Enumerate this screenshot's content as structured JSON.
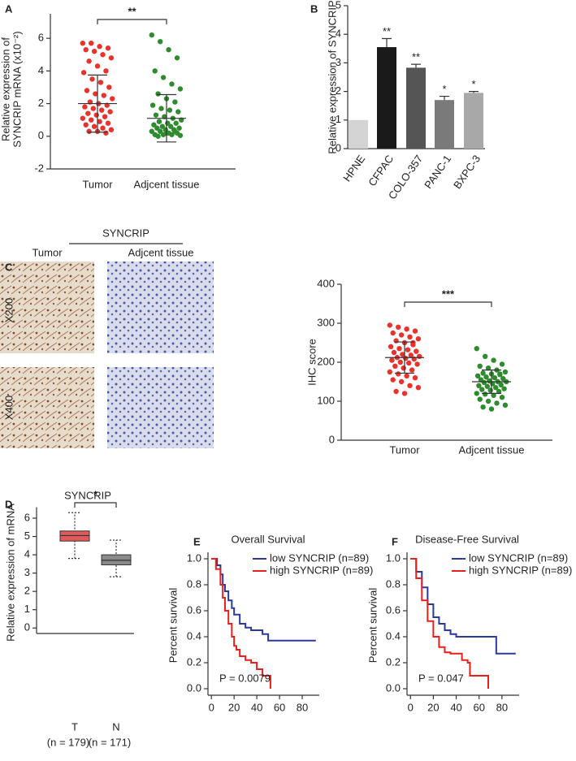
{
  "images": {
    "header": "SYNCRIP",
    "columns": [
      "Tumor",
      "Adjcent tissue"
    ],
    "rows": [
      "X200",
      "X400"
    ]
  },
  "chart_data": [
    {
      "type": "strip",
      "panel_label": "A",
      "ylabel": [
        "Relative expression of",
        "SYNCRIP mRNA (x10⁻²)"
      ],
      "categories": [
        "Tumor",
        "Adjcent tissue"
      ],
      "colors": [
        "#e8322b",
        "#2e8b2e"
      ],
      "values": [
        [
          5.7,
          5.7,
          5.5,
          5.4,
          5.3,
          5.2,
          5.0,
          4.8,
          4.6,
          4.3,
          4.0,
          3.9,
          3.5,
          3.3,
          3.0,
          2.8,
          2.6,
          2.5,
          2.3,
          2.1,
          2.0,
          1.9,
          1.8,
          1.7,
          1.6,
          1.5,
          1.4,
          1.3,
          1.2,
          1.1,
          1.0,
          0.9,
          0.8,
          0.7,
          0.6,
          0.5,
          0.4,
          0.3,
          0.3,
          0.2
        ],
        [
          6.2,
          5.8,
          5.3,
          4.8,
          4.0,
          3.6,
          3.2,
          2.9,
          2.6,
          2.3,
          2.1,
          1.9,
          1.7,
          1.6,
          1.5,
          1.3,
          1.2,
          1.1,
          1.0,
          0.9,
          0.8,
          0.8,
          0.7,
          0.6,
          0.6,
          0.5,
          0.5,
          0.4,
          0.4,
          0.3,
          0.3,
          0.2,
          0.2,
          0.1,
          0.1,
          0.1,
          0.05,
          0.0,
          0.2,
          0.3
        ]
      ],
      "mean": [
        2.0,
        1.1
      ],
      "sd": [
        1.75,
        1.45
      ],
      "significance": "**",
      "ylim": [
        -2,
        7.5
      ],
      "yticks": [
        -2,
        0,
        2,
        4,
        6
      ]
    },
    {
      "type": "bar",
      "panel_label": "B",
      "ylabel": "Relative expression of SYNCRIP",
      "categories": [
        "HPNE",
        "CFPAC",
        "COLO-357",
        "PANC-1",
        "BXPC-3"
      ],
      "values": [
        1.0,
        3.55,
        2.83,
        1.7,
        1.95
      ],
      "errors": [
        0,
        0.3,
        0.12,
        0.13,
        0.05
      ],
      "value_labels": [
        null,
        "**",
        "**",
        "*",
        "*"
      ],
      "colors": [
        "#d4d4d4",
        "#1a1a1a",
        "#555555",
        "#7a7a7a",
        "#a8a8a8"
      ],
      "ylim": [
        0,
        5
      ],
      "yticks": [
        0,
        1,
        2,
        3,
        4,
        5
      ]
    },
    {
      "type": "strip",
      "panel_label": "C",
      "ylabel": "IHC score",
      "categories": [
        "Tumor",
        "Adjcent tissue"
      ],
      "colors": [
        "#e8322b",
        "#2e8b2e"
      ],
      "values": [
        [
          295,
          290,
          285,
          280,
          275,
          270,
          265,
          260,
          255,
          250,
          245,
          240,
          235,
          232,
          228,
          225,
          220,
          218,
          215,
          212,
          210,
          208,
          205,
          200,
          198,
          195,
          190,
          185,
          180,
          175,
          170,
          165,
          160,
          155,
          150,
          140,
          135,
          125,
          120,
          250
        ],
        [
          235,
          215,
          205,
          195,
          190,
          185,
          180,
          175,
          172,
          170,
          168,
          165,
          162,
          160,
          158,
          155,
          152,
          150,
          150,
          148,
          145,
          142,
          140,
          138,
          135,
          132,
          130,
          128,
          125,
          120,
          118,
          115,
          110,
          105,
          100,
          95,
          90,
          85,
          80,
          170
        ]
      ],
      "mean": [
        212,
        150
      ],
      "sd": [
        40,
        30
      ],
      "significance": "***",
      "ylim": [
        0,
        400
      ],
      "yticks": [
        0,
        100,
        200,
        300,
        400
      ]
    },
    {
      "type": "box",
      "panel_label": "D",
      "title": "SYNCRIP",
      "ylabel": "Relative expression of mRNA",
      "categories": [
        "T",
        "N"
      ],
      "counts": [
        "(n = 179)",
        "(n = 171)"
      ],
      "colors": [
        "#e05a5a",
        "#8a8a8a"
      ],
      "q1": [
        4.75,
        3.45
      ],
      "median": [
        5.05,
        3.7
      ],
      "q3": [
        5.3,
        4.0
      ],
      "whisker_low": [
        3.8,
        2.8
      ],
      "whisker_high": [
        6.3,
        4.8
      ],
      "significance": "*",
      "ylim": [
        -0.3,
        6.6
      ],
      "yticks": [
        0,
        1,
        2,
        3,
        4,
        5,
        6
      ]
    },
    {
      "type": "survival",
      "panel_label": "E",
      "title": "Overall Survival",
      "ylabel": "Percent survival",
      "annotation": "P = 0.0079",
      "series": [
        {
          "name": "low SYNCRIP (n=89)",
          "color": "#2b3a9a",
          "x": [
            0,
            5,
            8,
            10,
            12,
            15,
            18,
            20,
            25,
            30,
            35,
            40,
            45,
            50,
            60,
            70,
            92
          ],
          "values": [
            1,
            0.95,
            0.88,
            0.8,
            0.75,
            0.68,
            0.62,
            0.57,
            0.5,
            0.47,
            0.45,
            0.45,
            0.42,
            0.37,
            0.37,
            0.37,
            0.37
          ]
        },
        {
          "name": "high SYNCRIP (n=89)",
          "color": "#e8201c",
          "x": [
            0,
            4,
            8,
            10,
            12,
            15,
            18,
            20,
            22,
            25,
            30,
            35,
            40,
            45,
            50,
            52
          ],
          "values": [
            1,
            0.92,
            0.8,
            0.7,
            0.6,
            0.5,
            0.4,
            0.33,
            0.3,
            0.25,
            0.22,
            0.2,
            0.15,
            0.1,
            0.1,
            0.0
          ]
        }
      ],
      "xlim": [
        -3,
        95
      ],
      "xticks": [
        0,
        20,
        40,
        60,
        80
      ],
      "ylim": [
        -0.05,
        1.05
      ],
      "yticks": [
        {
          "value": 0,
          "label": "0.0"
        },
        0.2,
        0.4,
        0.6,
        0.8,
        {
          "value": 1,
          "label": "1.0"
        }
      ]
    },
    {
      "type": "survival",
      "panel_label": "F",
      "title": "Disease-Free Survival",
      "ylabel": "Percent survival",
      "annotation": "P = 0.047",
      "series": [
        {
          "name": "low SYNCRIP (n=89)",
          "color": "#2b3a9a",
          "x": [
            0,
            5,
            10,
            15,
            20,
            25,
            30,
            35,
            40,
            45,
            50,
            60,
            70,
            75,
            92
          ],
          "values": [
            1,
            0.9,
            0.78,
            0.65,
            0.55,
            0.5,
            0.45,
            0.42,
            0.4,
            0.4,
            0.4,
            0.4,
            0.4,
            0.27,
            0.27
          ]
        },
        {
          "name": "high SYNCRIP (n=89)",
          "color": "#e8201c",
          "x": [
            0,
            5,
            10,
            15,
            20,
            25,
            30,
            35,
            40,
            45,
            50,
            52,
            60,
            68
          ],
          "values": [
            1,
            0.85,
            0.68,
            0.52,
            0.4,
            0.32,
            0.28,
            0.27,
            0.27,
            0.22,
            0.2,
            0.1,
            0.1,
            0.0
          ]
        }
      ],
      "xlim": [
        -3,
        95
      ],
      "xticks": [
        0,
        20,
        40,
        60,
        80
      ],
      "ylim": [
        -0.05,
        1.05
      ],
      "yticks": [
        {
          "value": 0,
          "label": "0.0"
        },
        0.2,
        0.4,
        0.6,
        0.8,
        {
          "value": 1,
          "label": "1.0"
        }
      ]
    }
  ]
}
